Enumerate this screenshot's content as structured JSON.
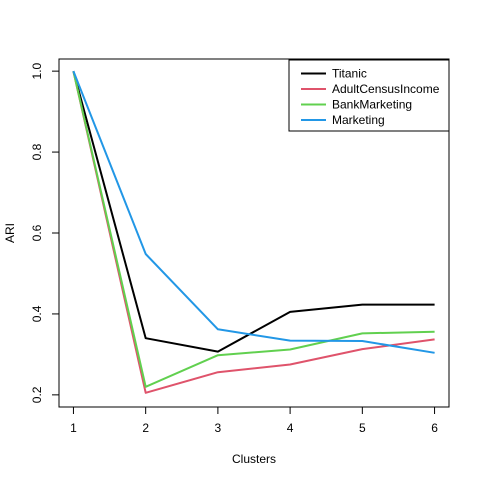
{
  "chart_data": {
    "type": "line",
    "title": "",
    "xlabel": "Clusters",
    "ylabel": "ARI",
    "x": [
      1,
      2,
      3,
      4,
      5,
      6
    ],
    "xlim": [
      0.8,
      6.2
    ],
    "ylim": [
      0.17,
      1.03
    ],
    "x_ticks": [
      1,
      2,
      3,
      4,
      5,
      6
    ],
    "y_ticks": [
      0.2,
      0.4,
      0.6,
      0.8,
      1.0
    ],
    "y_tick_labels": [
      "0.2",
      "0.4",
      "0.6",
      "0.8",
      "1.0"
    ],
    "grid": false,
    "legend_position": "top-right",
    "series": [
      {
        "name": "Titanic",
        "color": "#000000",
        "values": [
          1.0,
          0.34,
          0.307,
          0.405,
          0.423,
          0.423
        ]
      },
      {
        "name": "AdultCensusIncome",
        "color": "#DF536B",
        "values": [
          1.0,
          0.205,
          0.256,
          0.275,
          0.313,
          0.337
        ]
      },
      {
        "name": "BankMarketing",
        "color": "#61D04F",
        "values": [
          1.0,
          0.22,
          0.298,
          0.312,
          0.352,
          0.356
        ]
      },
      {
        "name": "Marketing",
        "color": "#2297E6",
        "values": [
          1.0,
          0.548,
          0.362,
          0.334,
          0.333,
          0.304
        ]
      }
    ]
  }
}
